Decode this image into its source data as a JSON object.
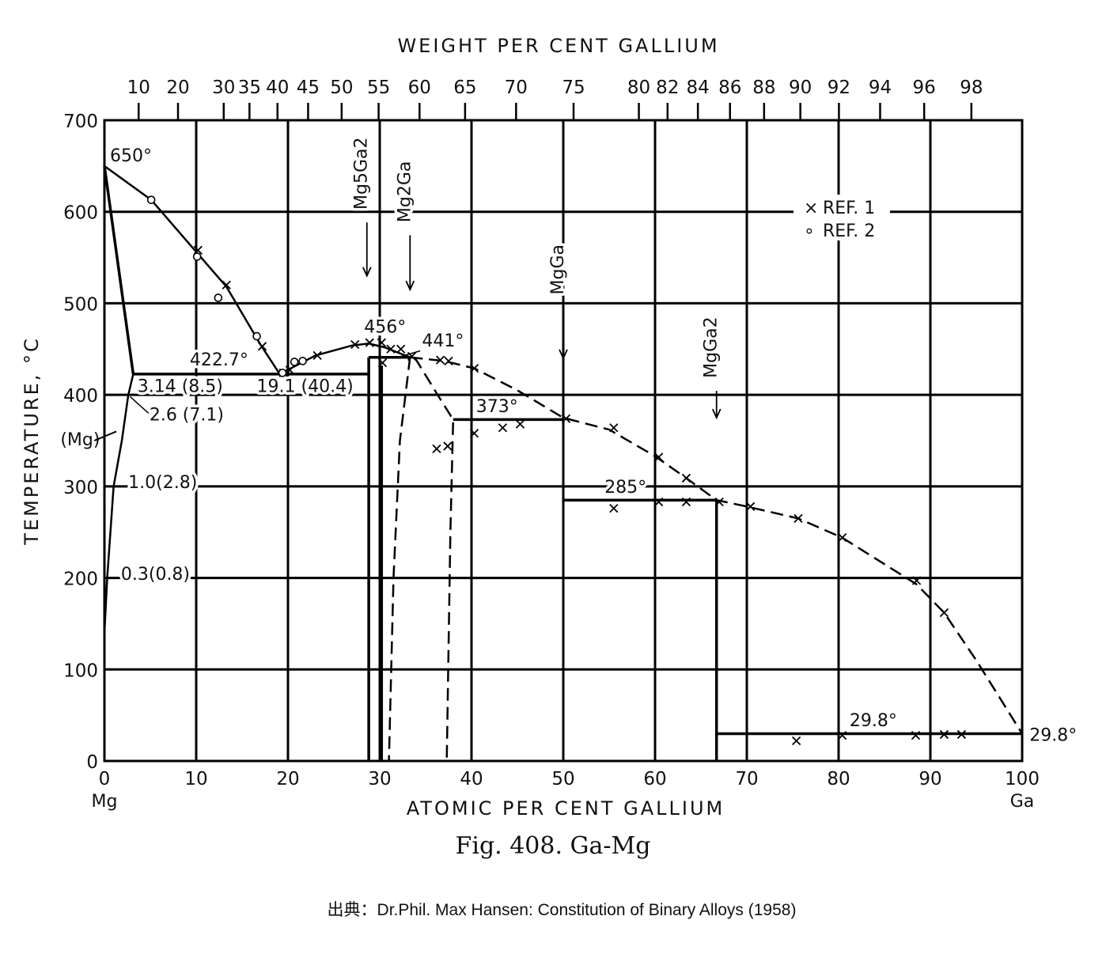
{
  "chart_data": {
    "type": "line",
    "title": "Fig. 408. Ga-Mg",
    "xlabel": "ATOMIC PER CENT GALLIUM",
    "x2label": "WEIGHT PER CENT GALLIUM",
    "ylabel": "TEMPERATURE, °C",
    "xlim": [
      0,
      100
    ],
    "ylim": [
      0,
      700
    ],
    "grid": true,
    "xticks": [
      0,
      10,
      20,
      30,
      40,
      50,
      60,
      70,
      80,
      90,
      100
    ],
    "yticks": [
      0,
      100,
      200,
      300,
      400,
      500,
      600,
      700
    ],
    "x_end_labels": {
      "left": "Mg",
      "right": "Ga"
    },
    "weight_ticks": [
      10,
      20,
      30,
      35,
      40,
      45,
      50,
      55,
      60,
      65,
      70,
      75,
      80,
      82,
      84,
      86,
      88,
      90,
      92,
      94,
      96,
      98
    ],
    "legend": {
      "placement": "top-right",
      "entries": [
        {
          "marker": "×",
          "label": "REF. 1"
        },
        {
          "marker": "∘",
          "label": "REF. 2"
        }
      ]
    },
    "curves": [
      {
        "name": "liquidus-mg",
        "style": "solid",
        "points": [
          [
            0,
            650
          ],
          [
            5.1,
            613
          ],
          [
            10.1,
            555
          ],
          [
            13.3,
            518
          ],
          [
            17,
            455
          ],
          [
            19.1,
            422.7
          ]
        ]
      },
      {
        "name": "liquidus-mg5ga2",
        "style": "solid",
        "points": [
          [
            19.1,
            422.7
          ],
          [
            23,
            443
          ],
          [
            27,
            454
          ],
          [
            28.8,
            456
          ],
          [
            30.5,
            452
          ],
          [
            33.3,
            441
          ]
        ]
      },
      {
        "name": "liquidus-ga-side",
        "style": "dashed",
        "points": [
          [
            33.3,
            441
          ],
          [
            37,
            437
          ],
          [
            40.3,
            429
          ],
          [
            45,
            405
          ],
          [
            50,
            375
          ],
          [
            55,
            362
          ],
          [
            60,
            333
          ],
          [
            63.4,
            309
          ],
          [
            66.7,
            285
          ],
          [
            70,
            278
          ],
          [
            75.6,
            265
          ],
          [
            80.4,
            244
          ],
          [
            85,
            215
          ],
          [
            88.5,
            193
          ],
          [
            91.5,
            162
          ],
          [
            95,
            110
          ],
          [
            98,
            62
          ],
          [
            100,
            29.8
          ]
        ]
      },
      {
        "name": "solidus-mg",
        "style": "solid",
        "points": [
          [
            0,
            650
          ],
          [
            3.14,
            422.7
          ]
        ]
      },
      {
        "name": "solvus-mg",
        "style": "solid",
        "points": [
          [
            3.14,
            422.7
          ],
          [
            2.6,
            400
          ],
          [
            1.9,
            350
          ],
          [
            1.0,
            300
          ],
          [
            0.3,
            200
          ],
          [
            0,
            140
          ]
        ]
      },
      {
        "name": "eutectic-422",
        "style": "solid",
        "points": [
          [
            3.14,
            422.7
          ],
          [
            28.8,
            422.7
          ]
        ]
      },
      {
        "name": "peritectic-441",
        "style": "solid",
        "points": [
          [
            28.8,
            441
          ],
          [
            33.3,
            441
          ]
        ]
      },
      {
        "name": "peritectic-373",
        "style": "solid",
        "points": [
          [
            38,
            373
          ],
          [
            50,
            373
          ]
        ]
      },
      {
        "name": "peritectic-285",
        "style": "solid",
        "points": [
          [
            50,
            285
          ],
          [
            66.7,
            285
          ]
        ]
      },
      {
        "name": "eutectic-29.8",
        "style": "solid",
        "points": [
          [
            66.7,
            29.8
          ],
          [
            100,
            29.8
          ]
        ]
      },
      {
        "name": "mg5ga2-left",
        "style": "solid",
        "points": [
          [
            28.8,
            0
          ],
          [
            28.8,
            441
          ]
        ]
      },
      {
        "name": "mg5ga2-right",
        "style": "solid",
        "points": [
          [
            30.2,
            0
          ],
          [
            30.2,
            432
          ]
        ]
      },
      {
        "name": "mgga2-line",
        "style": "solid",
        "points": [
          [
            66.7,
            0
          ],
          [
            66.7,
            285
          ]
        ]
      },
      {
        "name": "mg2ga-left",
        "style": "dashed",
        "points": [
          [
            33.3,
            441
          ],
          [
            32.2,
            350
          ],
          [
            31.5,
            200
          ],
          [
            31,
            0
          ]
        ]
      },
      {
        "name": "mg2ga-right",
        "style": "dashed",
        "points": [
          [
            33.8,
            441
          ],
          [
            36.3,
            400
          ],
          [
            38,
            373
          ],
          [
            37.7,
            250
          ],
          [
            37.3,
            0
          ]
        ]
      }
    ],
    "ref1_points": [
      [
        10.2,
        558
      ],
      [
        13.3,
        520
      ],
      [
        17.2,
        453
      ],
      [
        19.5,
        424
      ],
      [
        20.2,
        427
      ],
      [
        23.2,
        443
      ],
      [
        27.3,
        455
      ],
      [
        28.9,
        457
      ],
      [
        30.2,
        457
      ],
      [
        30.3,
        435
      ],
      [
        31.2,
        450
      ],
      [
        32.3,
        450
      ],
      [
        33.5,
        442
      ],
      [
        36.6,
        438
      ],
      [
        37.5,
        437
      ],
      [
        40.3,
        429
      ],
      [
        36.2,
        341
      ],
      [
        37.4,
        344
      ],
      [
        40.3,
        358
      ],
      [
        43.4,
        364
      ],
      [
        45.3,
        368
      ],
      [
        50.3,
        374
      ],
      [
        55.5,
        364
      ],
      [
        60.4,
        332
      ],
      [
        63.4,
        309
      ],
      [
        55.5,
        276
      ],
      [
        60.4,
        283
      ],
      [
        63.4,
        283
      ],
      [
        67,
        283
      ],
      [
        70.4,
        278
      ],
      [
        75.6,
        265
      ],
      [
        80.4,
        244
      ],
      [
        88.5,
        197
      ],
      [
        91.5,
        162
      ],
      [
        75.4,
        22
      ],
      [
        80.4,
        28
      ],
      [
        88.4,
        28
      ],
      [
        91.5,
        29
      ],
      [
        93.4,
        29
      ]
    ],
    "ref2_points": [
      [
        5.1,
        613
      ],
      [
        10.1,
        551
      ],
      [
        12.4,
        506
      ],
      [
        16.6,
        464
      ],
      [
        19.4,
        424
      ],
      [
        20.7,
        436
      ],
      [
        21.6,
        437
      ]
    ],
    "annotations": [
      {
        "text": "650°",
        "x": 0.6,
        "t": 655
      },
      {
        "text": "456°",
        "x": 28.3,
        "t": 468
      },
      {
        "text": "441°",
        "x": 34.6,
        "t": 453
      },
      {
        "text": "422.7°",
        "x": 9.3,
        "t": 432
      },
      {
        "text": "3.14 (8.5)",
        "x": 3.6,
        "t": 403
      },
      {
        "text": "19.1 (40.4)",
        "x": 16.6,
        "t": 403
      },
      {
        "text": "2.6 (7.1)",
        "x": 4.9,
        "t": 372
      },
      {
        "text": "(Mg)",
        "x": -4.8,
        "t": 345
      },
      {
        "text": "1.0(2.8)",
        "x": 2.6,
        "t": 298
      },
      {
        "text": "0.3(0.8)",
        "x": 1.8,
        "t": 198
      },
      {
        "text": "373°",
        "x": 40.5,
        "t": 381
      },
      {
        "text": "285°",
        "x": 54.5,
        "t": 293
      },
      {
        "text": "29.8°",
        "x": 81.2,
        "t": 38
      },
      {
        "text": "29.8°",
        "x": 100.8,
        "t": 22
      }
    ],
    "phases": [
      {
        "label": "Mg5Ga2",
        "x": 28.6,
        "text_t": 635,
        "arrow_t": 530
      },
      {
        "label": "Mg2Ga",
        "x": 33.3,
        "text_t": 615,
        "arrow_t": 515
      },
      {
        "label": "MgGa",
        "x": 50,
        "text_t": 530,
        "arrow_t": 440
      },
      {
        "label": "MgGa2",
        "x": 66.7,
        "text_t": 445,
        "arrow_t": 375
      }
    ]
  },
  "source": "出典：Dr.Phil. Max Hansen: Constitution of Binary Alloys (1958)"
}
